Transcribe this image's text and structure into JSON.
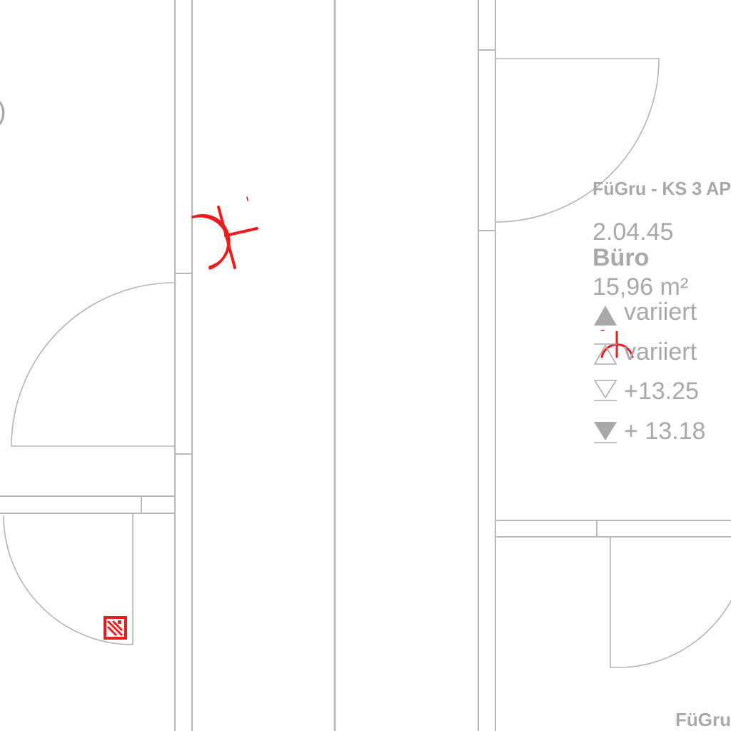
{
  "room": {
    "header": "FüGru -  KS 3 AP",
    "number": "2.04.45",
    "name": "Büro",
    "area": "15,96 m²",
    "levels": [
      {
        "symbol": "triangle-up-filled-icon",
        "value": "variiert"
      },
      {
        "symbol": "triangle-up-outline-icon",
        "value": "variiert"
      },
      {
        "symbol": "triangle-down-outline-icon",
        "value": "+13.25"
      },
      {
        "symbol": "triangle-down-filled-icon",
        "value": "+ 13.18"
      }
    ]
  },
  "bottom_label": "FüGru",
  "partial_label": ")",
  "colors": {
    "line": "#b9b9b9",
    "text": "#a8a8a8",
    "fire_symbol": "#ec1c1c"
  }
}
